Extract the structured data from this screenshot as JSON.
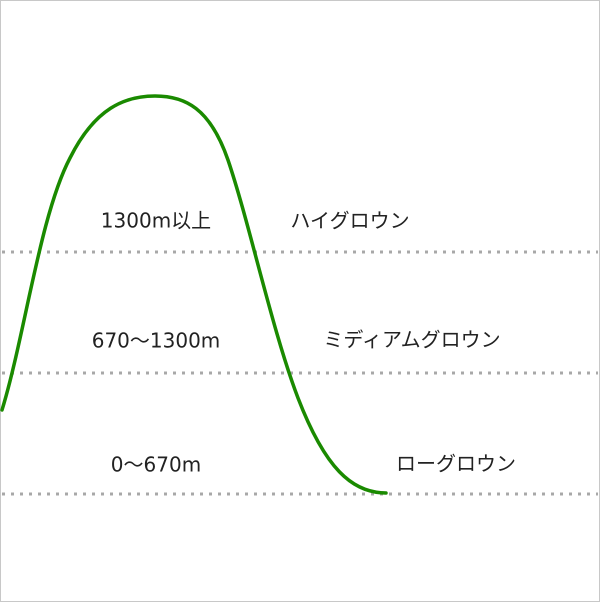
{
  "zones": [
    {
      "range": "1300m以上",
      "name": "ハイグロウン"
    },
    {
      "range": "670〜1300m",
      "name": "ミディアムグロウン"
    },
    {
      "range": "0〜670m",
      "name": "ローグロウン"
    }
  ]
}
